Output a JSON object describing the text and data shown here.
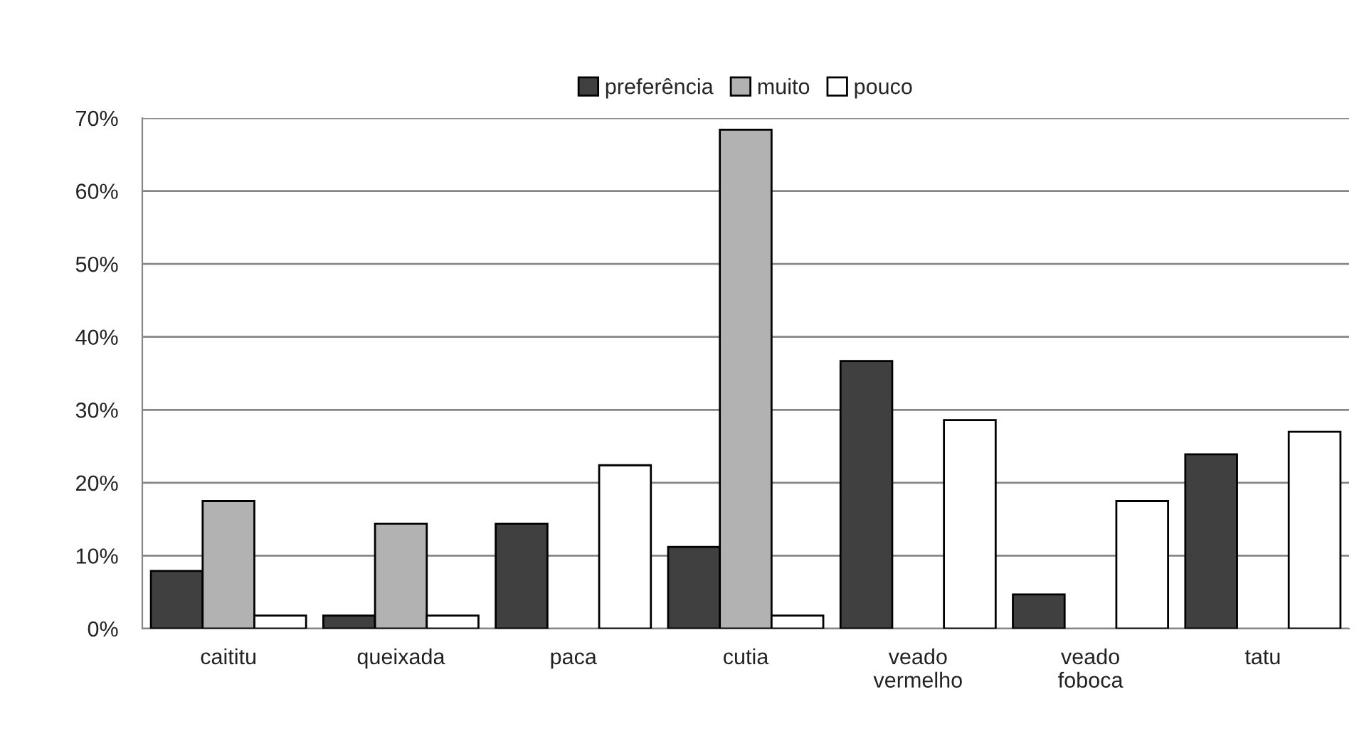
{
  "chart_data": {
    "type": "bar",
    "categories": [
      "caititu",
      "queixada",
      "paca",
      "cutia",
      "veado\nvermelho",
      "veado\nfoboca",
      "tatu"
    ],
    "series": [
      {
        "name": "preferência",
        "color": "#404040",
        "values": [
          7.9,
          1.8,
          14.4,
          11.2,
          36.7,
          4.7,
          23.9
        ]
      },
      {
        "name": "muito",
        "color": "#b2b2b2",
        "values": [
          17.5,
          14.4,
          null,
          68.4,
          null,
          null,
          null
        ]
      },
      {
        "name": "pouco",
        "color": "#ffffff",
        "values": [
          1.8,
          1.8,
          22.4,
          1.8,
          28.6,
          17.5,
          27.0
        ]
      }
    ],
    "ylim": [
      0,
      70
    ],
    "yticks": [
      {
        "value": 0,
        "label": "0%"
      },
      {
        "value": 10,
        "label": "10%"
      },
      {
        "value": 20,
        "label": "20%"
      },
      {
        "value": 30,
        "label": "30%"
      },
      {
        "value": 40,
        "label": "40%"
      },
      {
        "value": 50,
        "label": "50%"
      },
      {
        "value": 60,
        "label": "60%"
      },
      {
        "value": 70,
        "label": "70%"
      }
    ],
    "grid": "y",
    "legend": "top"
  }
}
